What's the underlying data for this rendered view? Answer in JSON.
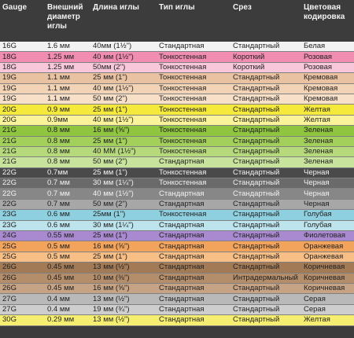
{
  "headers": {
    "gauge": "Gauge",
    "outer_diameter": "Внешний диаметр иглы",
    "length": "Длина иглы",
    "type": "Тип иглы",
    "bevel": "Срез",
    "color": "Цветовая кодировка"
  },
  "rows": [
    {
      "gauge": "16G",
      "diam": "1.6 мм",
      "length": "40мм (1½\")",
      "type": "Стандартная",
      "bevel": "Стандартный",
      "color": "Белая",
      "bg": "#f2f2f2",
      "dark": false
    },
    {
      "gauge": "18G",
      "diam": "1.25 мм",
      "length": "40 мм (1½\")",
      "type": "Тонкостенная",
      "bevel": "Короткий",
      "color": "Розовая",
      "bg": "#f08db0",
      "dark": false
    },
    {
      "gauge": "18G",
      "diam": "1.25 мм",
      "length": "50мм (2\")",
      "type": "Тонкостенная",
      "bevel": "Короткий",
      "color": "Розовая",
      "bg": "#f8c8da",
      "dark": false
    },
    {
      "gauge": "19G",
      "diam": "1.1 мм",
      "length": "25 мм (1\")",
      "type": "Тонкостенная",
      "bevel": "Стандартный",
      "color": "Кремовая",
      "bg": "#e9c2a1",
      "dark": false
    },
    {
      "gauge": "19G",
      "diam": "1.1 мм",
      "length": "40 мм (1½\")",
      "type": "Тонкостенная",
      "bevel": "Стандартный",
      "color": "Кремовая",
      "bg": "#f3d3b6",
      "dark": false
    },
    {
      "gauge": "19G",
      "diam": "1.1 мм",
      "length": "50 мм (2\")",
      "type": "Тонкостенная",
      "bevel": "Стандартный",
      "color": "Кремовая",
      "bg": "#f7dfc8",
      "dark": false
    },
    {
      "gauge": "20G",
      "diam": "0.9 мм",
      "length": "25 мм (1\")",
      "type": "Тонкостенная",
      "bevel": "Стандартный",
      "color": "Желтая",
      "bg": "#f5ea3c",
      "dark": false
    },
    {
      "gauge": "20G",
      "diam": "0.9мм",
      "length": "40 мм (1½\")",
      "type": "Тонкостенная",
      "bevel": "Стандартный",
      "color": "Желтая",
      "bg": "#fbf39a",
      "dark": false
    },
    {
      "gauge": "21G",
      "diam": "0.8 мм",
      "length": "16 мм (⅝\")",
      "type": "Тонкостенная",
      "bevel": "Стандартный",
      "color": "Зеленая",
      "bg": "#8fc53f",
      "dark": false
    },
    {
      "gauge": "21G",
      "diam": "0.8 мм",
      "length": "25 мм (1\")",
      "type": "Тонкостенная",
      "bevel": "Стандартный",
      "color": "Зеленая",
      "bg": "#a3d05a",
      "dark": false
    },
    {
      "gauge": "21G",
      "diam": "0.8 мм",
      "length": "40 ММ (1½\")",
      "type": "Тонкостенная",
      "bevel": "Стандартный",
      "color": "Зеленая",
      "bg": "#b6da7b",
      "dark": false
    },
    {
      "gauge": "21G",
      "diam": "0.8 мм",
      "length": "50 мм (2\")",
      "type": "Стандартная",
      "bevel": "Стандартный",
      "color": "Зеленая",
      "bg": "#c8e49c",
      "dark": false
    },
    {
      "gauge": "22G",
      "diam": "0.7мм",
      "length": "25 мм (1\")",
      "type": "Тонкостенная",
      "bevel": "Стандартный",
      "color": "Черная",
      "bg": "#4a4a4a",
      "dark": true
    },
    {
      "gauge": "22G",
      "diam": "0.7 мм",
      "length": "30 мм (1¼\")",
      "type": "Тонкостенная",
      "bevel": "Стандартный",
      "color": "Черная",
      "bg": "#6a6a6a",
      "dark": true
    },
    {
      "gauge": "22G",
      "diam": "0.7 мм",
      "length": "40 мм (1½\")",
      "type": "Стандартная",
      "bevel": "Стандартный",
      "color": "Черная",
      "bg": "#878787",
      "dark": true
    },
    {
      "gauge": "22G",
      "diam": "0.7 мм",
      "length": "50 мм (2\")",
      "type": "Стандартная",
      "bevel": "Стандартный",
      "color": "Черная",
      "bg": "#a7a7a7",
      "dark": false
    },
    {
      "gauge": "23G",
      "diam": "0.6 мм",
      "length": "25мм (1\")",
      "type": "Тонкостенная",
      "bevel": "Стандартный",
      "color": "Голубая",
      "bg": "#8fd0e0",
      "dark": false
    },
    {
      "gauge": "23G",
      "diam": "0.6 мм",
      "length": "30 мм (1¼\")",
      "type": "Стандартная",
      "bevel": "Стандартный",
      "color": "Голубая",
      "bg": "#bde3ec",
      "dark": false
    },
    {
      "gauge": "24G",
      "diam": "0.55 мм",
      "length": "25 мм (1\")",
      "type": "Стандартная",
      "bevel": "Стандартный",
      "color": "Фиолетовая",
      "bg": "#a98ad0",
      "dark": false
    },
    {
      "gauge": "25G",
      "diam": "0.5 мм",
      "length": "16 мм (⅝\")",
      "type": "Стандартная",
      "bevel": "Стандартный",
      "color": "Оранжевая",
      "bg": "#f2a45c",
      "dark": false
    },
    {
      "gauge": "25G",
      "diam": "0.5 мм",
      "length": "25 мм (1\")",
      "type": "Стандартная",
      "bevel": "Стандартный",
      "color": "Оранжевая",
      "bg": "#f7bf86",
      "dark": false
    },
    {
      "gauge": "26G",
      "diam": "0.45 мм",
      "length": "13 мм (½\")",
      "type": "Стандартная",
      "bevel": "Стандартный",
      "color": "Коричневая",
      "bg": "#a27a56",
      "dark": false
    },
    {
      "gauge": "26G",
      "diam": "0.45 мм",
      "length": "10 мм (⅜\")",
      "type": "Стандартная",
      "bevel": "Интрадермальный",
      "color": "Коричневая",
      "bg": "#b48d6a",
      "dark": false
    },
    {
      "gauge": "26G",
      "diam": "0.45 мм",
      "length": "16 мм (⅝\")",
      "type": "Стандартная",
      "bevel": "Стандартный",
      "color": "Коричневая",
      "bg": "#c6a384",
      "dark": false
    },
    {
      "gauge": "27G",
      "diam": "0.4 мм",
      "length": "13 мм (½\")",
      "type": "Стандартная",
      "bevel": "Стандартный",
      "color": "Серая",
      "bg": "#b9b9b9",
      "dark": false
    },
    {
      "gauge": "27G",
      "diam": "0.4 мм",
      "length": "19 мм (¾\")",
      "type": "Стандартная",
      "bevel": "Стандартный",
      "color": "Серая",
      "bg": "#cecece",
      "dark": false
    },
    {
      "gauge": "30G",
      "diam": "0.29 мм",
      "length": "13 мм (½\")",
      "type": "Стандартная",
      "bevel": "Стандартный",
      "color": "Желтая",
      "bg": "#f6ee70",
      "dark": false
    }
  ]
}
